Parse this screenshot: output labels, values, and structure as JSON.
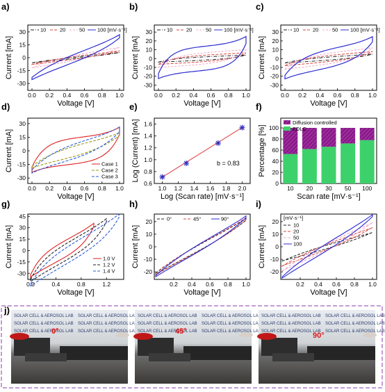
{
  "colors": {
    "s10": "#222222",
    "s20": "#d8453c",
    "s50": "#f0a8c8",
    "s100": "#2b2bd0",
    "case1": "#e02020",
    "case2": "#9a9a14",
    "case3": "#2b5bd8",
    "diff": "#8b1a8b",
    "edlc": "#3dd16b",
    "line": "#e04040",
    "marker": "#3030c0",
    "frame": "#8b3aa8"
  },
  "panels": {
    "a": {
      "letter": "a)",
      "xlabel": "Voltage [V]",
      "ylabel": "Current [mA]",
      "xticks": [
        "0.0",
        "0.2",
        "0.4",
        "0.6",
        "0.8",
        "1.0"
      ],
      "yticks": [
        "30",
        "15",
        "0",
        "-15",
        "-30"
      ],
      "legend": [
        "10",
        "20",
        "50",
        "100 [mV·s⁻¹]"
      ]
    },
    "b": {
      "letter": "b)",
      "xlabel": "Voltage [V]",
      "ylabel": "Current [mA]",
      "xticks": [
        "0.0",
        "0.2",
        "0.4",
        "0.6",
        "0.8",
        "1.0"
      ],
      "yticks": [
        "30",
        "20",
        "10",
        "0",
        "-10",
        "-20",
        "-30"
      ],
      "legend": [
        "10",
        "20",
        "50",
        "100 [mV·s⁻¹]"
      ]
    },
    "c": {
      "letter": "c)",
      "xlabel": "Voltage [V]",
      "ylabel": "Current [mA]",
      "xticks": [
        "0.0",
        "0.2",
        "0.4",
        "0.6",
        "0.8",
        "1.0"
      ],
      "yticks": [
        "30",
        "20",
        "10",
        "0",
        "-10",
        "-20",
        "-30"
      ],
      "legend": [
        "10",
        "20",
        "50",
        "100 [mV·s⁻¹]"
      ]
    },
    "d": {
      "letter": "d)",
      "xlabel": "Voltage [V]",
      "ylabel": "Current [mA]",
      "xticks": [
        "0.0",
        "0.2",
        "0.4",
        "0.6",
        "0.8",
        "1.0"
      ],
      "yticks": [
        "30",
        "15",
        "0",
        "-15",
        "-30"
      ],
      "legend": [
        "Case 1",
        "Case 2",
        "Case 3"
      ]
    },
    "e": {
      "letter": "e)",
      "xlabel": "Log (Scan rate) [mV·s⁻¹]",
      "ylabel": "Log (Current) [mA]",
      "xticks": [
        "1.0",
        "1.2",
        "1.4",
        "1.6",
        "1.8",
        "2.0"
      ],
      "yticks": [
        "0.6",
        "0.8",
        "1.0",
        "1.2",
        "1.4",
        "1.6"
      ],
      "annotation": "b = 0.83"
    },
    "f": {
      "letter": "f)",
      "xlabel": "Scan rate [mV·s⁻¹]",
      "ylabel": "Percentage [%]",
      "xticks": [
        "10",
        "20",
        "30",
        "50",
        "100"
      ],
      "yticks": [
        "0",
        "20",
        "40",
        "60",
        "80",
        "100"
      ],
      "legend": [
        "Diffusion controlled",
        "EDLC"
      ]
    },
    "g": {
      "letter": "g)",
      "xlabel": "Voltage [V]",
      "ylabel": "Current [mA]",
      "xticks": [
        "0.0",
        "0.4",
        "0.8",
        "1.2"
      ],
      "yticks": [
        "45",
        "30",
        "15",
        "0",
        "-15",
        "-30"
      ],
      "legend": [
        "1.0 V",
        "1.2 V",
        "1.4 V"
      ]
    },
    "h": {
      "letter": "h)",
      "xlabel": "Voltage [V]",
      "ylabel": "Current [mA]",
      "xticks": [
        "0.2",
        "0.4",
        "0.6",
        "0.8",
        "1.0"
      ],
      "yticks": [
        "20",
        "10",
        "0",
        "-10",
        "-20"
      ],
      "legend": [
        "0°",
        "45°",
        "90°"
      ]
    },
    "i": {
      "letter": "i)",
      "xlabel": "Voltage [V]",
      "ylabel": "Current [mA]",
      "xticks": [
        "0.2",
        "0.4",
        "0.6",
        "0.8",
        "1.0"
      ],
      "yticks": [
        "20",
        "10",
        "0",
        "-10",
        "-20"
      ],
      "legend": [
        "[mV·s⁻¹]",
        "10",
        "20",
        "50",
        "100"
      ]
    },
    "j": {
      "letter": "j)",
      "photo_text": "SOLAR CELL & AEROSOL LAB",
      "angles": [
        "0°",
        "45°",
        "90°"
      ]
    }
  },
  "chart_data": [
    {
      "type": "line",
      "panel": "e",
      "x": [
        1.0,
        1.301,
        1.699,
        2.0
      ],
      "y": [
        0.71,
        0.94,
        1.28,
        1.54
      ],
      "fit_label": "b = 0.83",
      "xlim": [
        0.9,
        2.1
      ],
      "ylim": [
        0.6,
        1.7
      ]
    },
    {
      "type": "bar",
      "panel": "f",
      "categories": [
        "10",
        "20",
        "30",
        "50",
        "100"
      ],
      "series": [
        {
          "name": "EDLC",
          "values": [
            53,
            62,
            66,
            72,
            78
          ]
        },
        {
          "name": "Diffusion controlled",
          "values": [
            47,
            38,
            34,
            28,
            22
          ]
        }
      ],
      "ylim": [
        0,
        100
      ]
    }
  ]
}
